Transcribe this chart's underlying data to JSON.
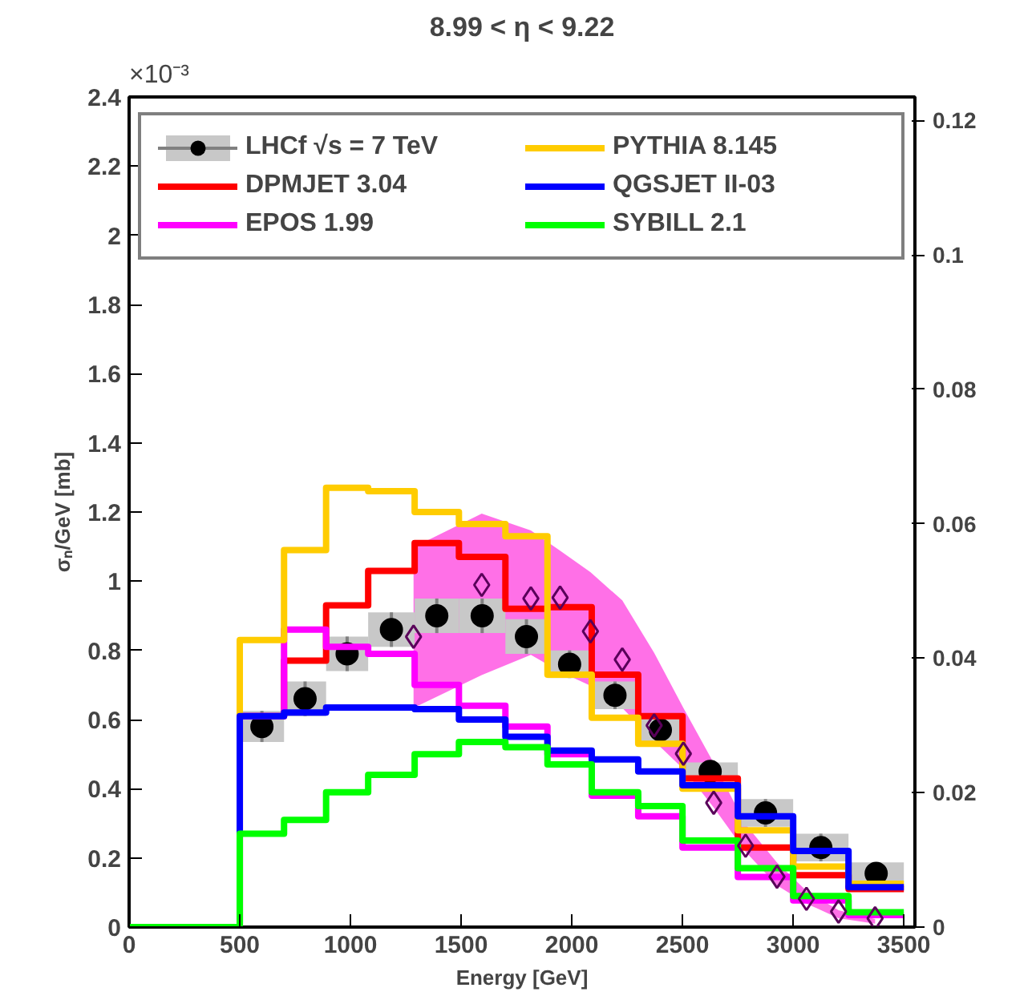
{
  "chart_data": {
    "type": "histogram",
    "title": "8.99 < η < 9.22",
    "xlabel": "Energy [GeV]",
    "ylabel": "σₙ/GeV [mb]",
    "annotations": [
      "×10⁻³"
    ],
    "bins": [
      0,
      500,
      700,
      890,
      1080,
      1290,
      1490,
      1700,
      1890,
      2090,
      2300,
      2500,
      2750,
      3000,
      3250,
      3500
    ],
    "xlim": [
      0,
      3550
    ],
    "xticks": [
      0,
      500,
      1000,
      1500,
      2000,
      2500,
      3000,
      3500
    ],
    "ylim": [
      0,
      2.4
    ],
    "yticks": [
      0,
      0.2,
      0.4,
      0.6,
      0.8,
      1,
      1.2,
      1.4,
      1.6,
      1.8,
      2,
      2.2,
      2.4
    ],
    "y2lim": [
      0,
      0.1235
    ],
    "y2ticks": [
      0,
      0.02,
      0.04,
      0.06,
      0.08,
      0.1,
      0.12
    ],
    "legend": "top",
    "grid": false,
    "series": [
      {
        "name": "LHCf √s = 7 TeV",
        "type": "scatter",
        "marker": "circle",
        "color": "#000000",
        "x": [
          600,
          795,
          985,
          1185,
          1390,
          1595,
          1795,
          1990,
          2195,
          2400,
          2625,
          2875,
          3125,
          3375
        ],
        "values": [
          0.58,
          0.66,
          0.79,
          0.86,
          0.9,
          0.9,
          0.84,
          0.76,
          0.67,
          0.57,
          0.45,
          0.33,
          0.23,
          0.155
        ],
        "errors": [
          0.045,
          0.05,
          0.05,
          0.05,
          0.05,
          0.05,
          0.05,
          0.04,
          0.04,
          0.035,
          0.026,
          0.04,
          0.04,
          0.032
        ]
      },
      {
        "name": "DPMJET 3.04",
        "color": "#ff0000",
        "values": [
          0,
          0.61,
          0.77,
          0.93,
          1.03,
          1.11,
          1.07,
          0.92,
          0.925,
          0.73,
          0.61,
          0.43,
          0.23,
          0.15,
          0.11
        ]
      },
      {
        "name": "EPOS 1.99",
        "color": "#ff00ff",
        "values": [
          0,
          0.61,
          0.86,
          0.81,
          0.79,
          0.7,
          0.64,
          0.58,
          0.5,
          0.38,
          0.32,
          0.23,
          0.145,
          0.077,
          0.035
        ]
      },
      {
        "name": "PYTHIA 8.145",
        "color": "#ffcc00",
        "values": [
          0,
          0.83,
          1.09,
          1.27,
          1.26,
          1.2,
          1.165,
          1.13,
          0.73,
          0.605,
          0.53,
          0.4,
          0.28,
          0.175,
          0.125
        ]
      },
      {
        "name": "QGSJET II-03",
        "color": "#0000ff",
        "values": [
          0,
          0.61,
          0.62,
          0.635,
          0.635,
          0.63,
          0.6,
          0.55,
          0.51,
          0.485,
          0.45,
          0.41,
          0.32,
          0.22,
          0.115
        ]
      },
      {
        "name": "SYBILL 2.1",
        "color": "#00ff00",
        "values": [
          0,
          0.27,
          0.31,
          0.39,
          0.44,
          0.5,
          0.535,
          0.52,
          0.47,
          0.39,
          0.35,
          0.25,
          0.17,
          0.09,
          0.043
        ]
      },
      {
        "type": "area",
        "axis": "y2",
        "color": "#ff33dd",
        "x": [
          1285,
          1593,
          1815,
          1947,
          2084,
          2228,
          2372,
          2504,
          2641,
          2785,
          2927,
          3060,
          3205,
          3370
        ],
        "values": [
          null,
          null,
          null,
          null,
          null,
          null,
          null,
          null,
          null,
          null,
          null,
          null,
          null,
          null
        ],
        "lower": [
          0.0326,
          0.0375,
          0.0405,
          0.038,
          0.0359,
          0.0326,
          0.0277,
          0.0235,
          0.0178,
          0.0112,
          0.0062,
          0.0035,
          0.0013,
          0.0005
        ],
        "upper": [
          0.0565,
          0.0615,
          0.059,
          0.056,
          0.0528,
          0.0486,
          0.0408,
          0.0326,
          0.0244,
          0.0153,
          0.0096,
          0.0054,
          0.0025,
          0.0012
        ]
      },
      {
        "type": "scatter",
        "axis": "y2",
        "marker": "diamond",
        "color": "#5a005a",
        "x": [
          1285,
          1593,
          1815,
          1947,
          2084,
          2228,
          2372,
          2504,
          2641,
          2785,
          2927,
          3060,
          3205,
          3370
        ],
        "values": [
          0.0432,
          0.0509,
          0.0489,
          0.049,
          0.044,
          0.0398,
          0.03,
          0.0258,
          0.0185,
          0.0121,
          0.0075,
          0.0042,
          0.0023,
          0.0013
        ]
      }
    ]
  }
}
